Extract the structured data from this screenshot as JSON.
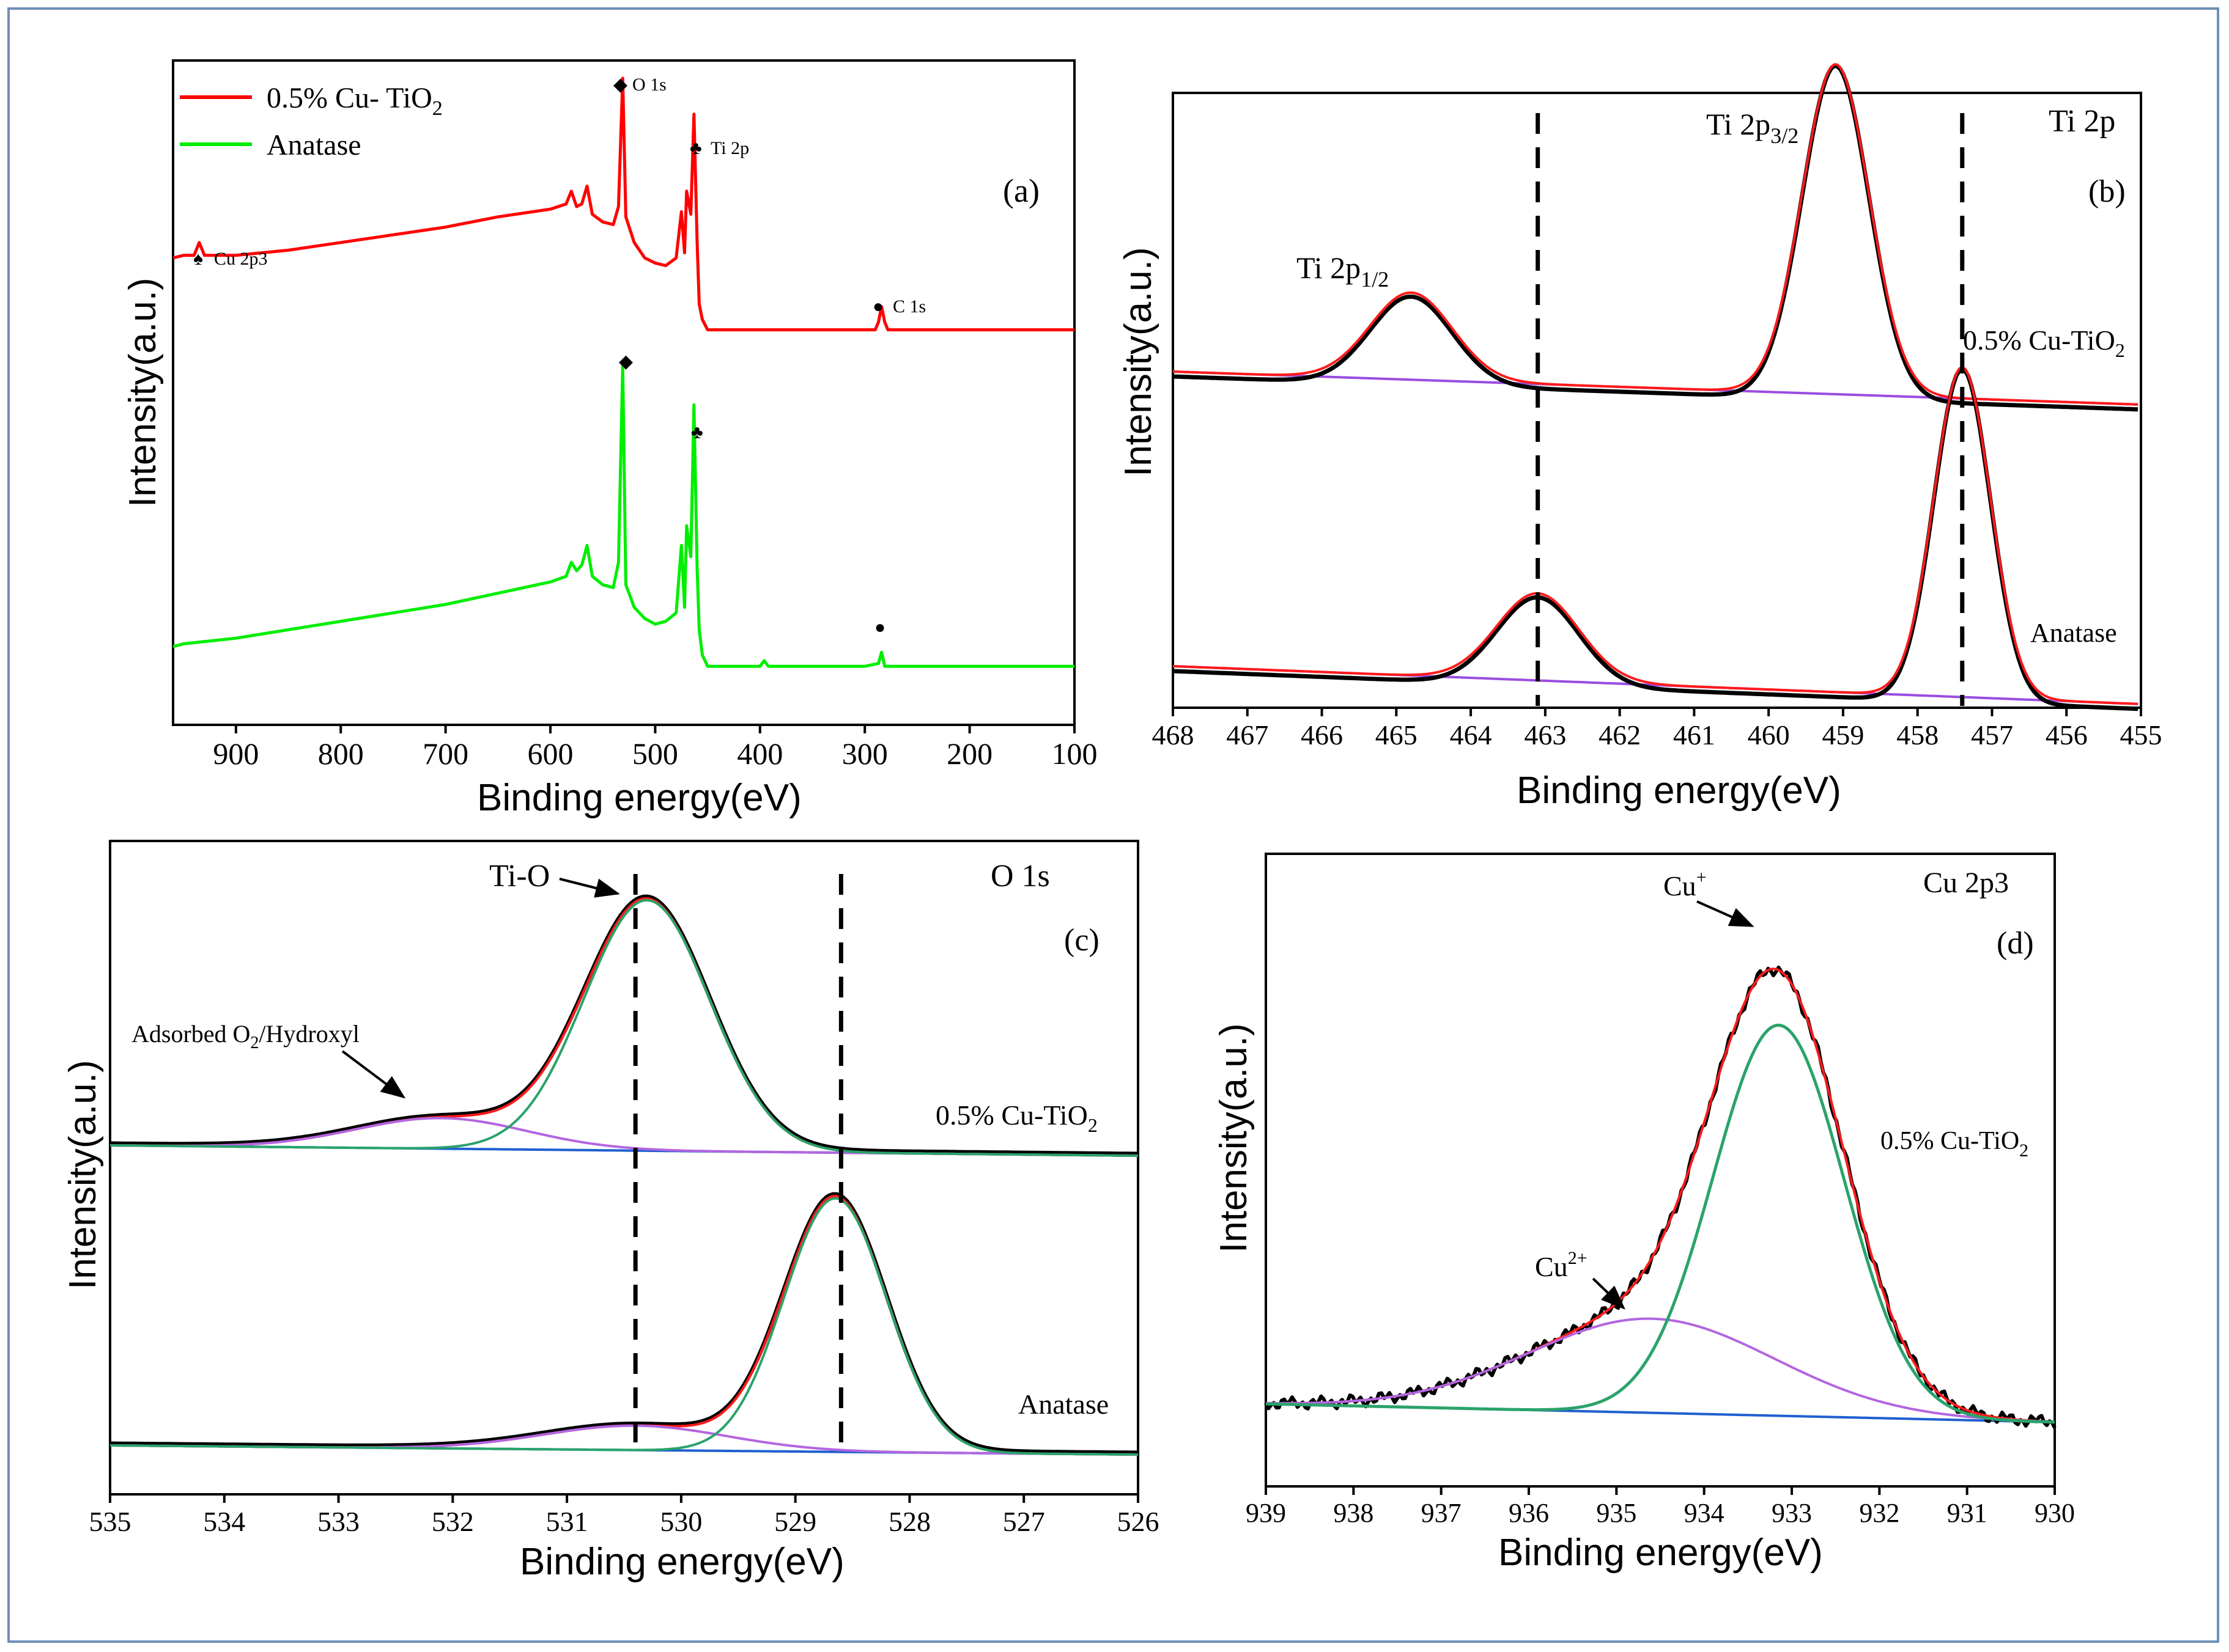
{
  "chart_data": [
    {
      "panel": "(a)",
      "type": "line",
      "xlabel": "Binding energy(eV)",
      "ylabel": "Intensity(a.u.)",
      "xlim": [
        960,
        100
      ],
      "xticks": [
        900,
        800,
        700,
        600,
        500,
        400,
        300,
        200,
        100
      ],
      "series": [
        {
          "name": "0.5% Cu- TiO2",
          "color": "#ff0000",
          "x": [
            960,
            950,
            940,
            935,
            930,
            900,
            850,
            800,
            750,
            700,
            650,
            600,
            585,
            580,
            575,
            570,
            565,
            560,
            550,
            540,
            535,
            531,
            528,
            520,
            510,
            500,
            490,
            480,
            475,
            472,
            470,
            466,
            463,
            460,
            458,
            455,
            450,
            430,
            400,
            350,
            300,
            290,
            287,
            284,
            281,
            278,
            250,
            200,
            150,
            100
          ],
          "y": [
            0.3,
            0.31,
            0.31,
            0.36,
            0.31,
            0.31,
            0.33,
            0.36,
            0.39,
            0.42,
            0.46,
            0.49,
            0.51,
            0.56,
            0.5,
            0.51,
            0.58,
            0.47,
            0.44,
            0.43,
            0.5,
            1.0,
            0.46,
            0.36,
            0.3,
            0.28,
            0.27,
            0.3,
            0.48,
            0.32,
            0.56,
            0.47,
            0.86,
            0.36,
            0.12,
            0.06,
            0.02,
            0.02,
            0.02,
            0.02,
            0.02,
            0.02,
            0.05,
            0.11,
            0.05,
            0.02,
            0.02,
            0.02,
            0.02,
            0.02
          ]
        },
        {
          "name": "Anatase",
          "color": "#00ee00",
          "x": [
            960,
            950,
            900,
            850,
            800,
            750,
            700,
            650,
            600,
            585,
            580,
            575,
            570,
            565,
            560,
            550,
            540,
            535,
            531,
            528,
            520,
            510,
            500,
            490,
            480,
            475,
            472,
            470,
            466,
            463,
            460,
            458,
            455,
            450,
            430,
            400,
            396,
            392,
            350,
            300,
            287,
            284,
            281,
            250,
            200,
            150,
            100
          ],
          "y": [
            0.0,
            0.01,
            0.03,
            0.06,
            0.09,
            0.12,
            0.15,
            0.19,
            0.23,
            0.25,
            0.3,
            0.27,
            0.29,
            0.36,
            0.25,
            0.22,
            0.21,
            0.3,
            1.0,
            0.22,
            0.14,
            0.1,
            0.08,
            0.09,
            0.12,
            0.36,
            0.14,
            0.43,
            0.32,
            0.86,
            0.28,
            0.06,
            -0.03,
            -0.07,
            -0.07,
            -0.07,
            -0.05,
            -0.07,
            -0.07,
            -0.07,
            -0.06,
            -0.02,
            -0.07,
            -0.07,
            -0.07,
            -0.07,
            -0.07
          ]
        }
      ],
      "legend": [
        "0.5% Cu- TiO2",
        "Anatase"
      ],
      "annotations": [
        "O 1s",
        "Ti 2p",
        "Cu 2p3",
        "C 1s",
        "(a)"
      ]
    },
    {
      "panel": "(b)",
      "type": "line",
      "title": "Ti 2p",
      "xlabel": "Binding energy(eV)",
      "ylabel": "Intensity(a.u.)",
      "xlim": [
        468,
        455
      ],
      "xticks": [
        468,
        467,
        466,
        465,
        464,
        463,
        462,
        461,
        460,
        459,
        458,
        457,
        456,
        455
      ],
      "dashed_lines_x": [
        463.1,
        457.4
      ],
      "peaks": {
        "cu_tio2": [
          {
            "label": "Ti 2p1/2",
            "center": 464.8,
            "height": 0.19
          },
          {
            "label": "Ti 2p3/2",
            "center": 459.1,
            "height": 0.72
          }
        ],
        "anatase": [
          {
            "label": "Ti 2p1/2",
            "center": 463.1,
            "height": 0.19
          },
          {
            "label": "Ti 2p3/2",
            "center": 457.4,
            "height": 0.72
          }
        ]
      },
      "labels": [
        "0.5% Cu-TiO2",
        "Anatase"
      ],
      "annotations": [
        "Ti 2p",
        "(b)"
      ]
    },
    {
      "panel": "(c)",
      "type": "line",
      "title": "O 1s",
      "xlabel": "Binding energy(eV)",
      "ylabel": "Intensity(a.u.)",
      "xlim": [
        535,
        526
      ],
      "xticks": [
        535,
        534,
        533,
        532,
        531,
        530,
        529,
        528,
        527,
        526
      ],
      "dashed_lines_x": [
        530.4,
        528.6
      ],
      "peaks": {
        "cu_tio2": [
          {
            "label": "Ti-O",
            "center": 530.3,
            "height": 0.82
          },
          {
            "label": "Adsorbed O2/Hydroxyl",
            "center": 532.1,
            "height": 0.1
          }
        ],
        "anatase": [
          {
            "label": "Ti-O",
            "center": 528.65,
            "height": 0.83
          },
          {
            "label": "Adsorbed O2/Hydroxyl",
            "center": 530.4,
            "height": 0.08
          }
        ]
      },
      "labels": [
        "0.5% Cu-TiO2",
        "Anatase"
      ],
      "annotations": [
        "Ti-O",
        "Adsorbed O2/Hydroxyl",
        "O 1s",
        "(c)"
      ]
    },
    {
      "panel": "(d)",
      "type": "line",
      "title": "Cu 2p3",
      "xlabel": "Binding energy(eV)",
      "ylabel": "Intensity(a.u.)",
      "xlim": [
        939,
        930
      ],
      "xticks": [
        939,
        938,
        937,
        936,
        935,
        934,
        933,
        932,
        931,
        930
      ],
      "peaks": [
        {
          "label": "Cu+",
          "center": 933.15,
          "height": 0.83
        },
        {
          "label": "Cu2+",
          "center": 934.6,
          "height": 0.2
        }
      ],
      "labels": [
        "0.5% Cu-TiO2"
      ],
      "annotations": [
        "Cu+",
        "Cu2+",
        "Cu 2p3",
        "(d)"
      ]
    }
  ],
  "text": {
    "a": {
      "legend1_pre": "0.5% Cu- TiO",
      "legend1_sub": "2",
      "legend2": "Anatase",
      "O1s": "O 1s",
      "Ti2p": "Ti 2p",
      "Cu2p3": "Cu 2p3",
      "C1s": "C 1s",
      "tag": "(a)",
      "xlabel": "Binding energy(eV)",
      "ylabel": "Intensity(a.u.)"
    },
    "b": {
      "title": "Ti 2p",
      "tag": "(b)",
      "peak1_pre": "Ti 2p",
      "peak1_sub": "1/2",
      "peak2_pre": "Ti 2p",
      "peak2_sub": "3/2",
      "sample_pre": "0.5% Cu-TiO",
      "sample_sub": "2",
      "anatase": "Anatase",
      "xlabel": "Binding energy(eV)",
      "ylabel": "Intensity(a.u.)"
    },
    "c": {
      "title": "O 1s",
      "tag": "(c)",
      "tio": "Ti-O",
      "ads_pre": "Adsorbed O",
      "ads_sub": "2",
      "ads_post": "/Hydroxyl",
      "sample_pre": "0.5% Cu-TiO",
      "sample_sub": "2",
      "anatase": "Anatase",
      "xlabel": "Binding energy(eV)",
      "ylabel": "Intensity(a.u.)"
    },
    "d": {
      "title": "Cu 2p3",
      "tag": "(d)",
      "cu1_pre": "Cu",
      "cu1_sup": "+",
      "cu2_pre": "Cu",
      "cu2_sup": "2+",
      "sample_pre": "0.5% Cu-TiO",
      "sample_sub": "2",
      "xlabel": "Binding energy(eV)",
      "ylabel": "Intensity(a.u.)"
    }
  },
  "colors": {
    "raw": "#000000",
    "envelope": "#ff1a1a",
    "main_fit": "#2aa36b",
    "second_fit": "#b266e0",
    "background": "#1f5fd0",
    "background_b": "#9b4de0"
  }
}
